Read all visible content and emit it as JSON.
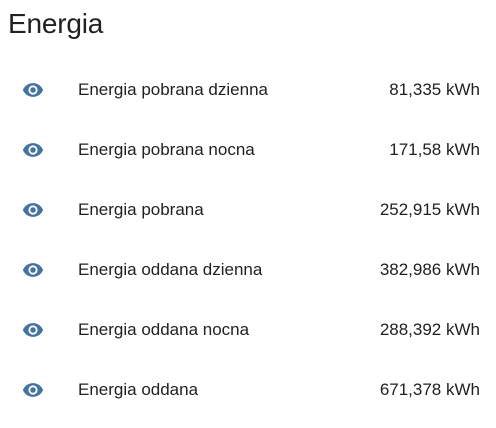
{
  "card": {
    "title": "Energia"
  },
  "theme": {
    "icon_color": "#44739e",
    "text_color": "#212121"
  },
  "entities": [
    {
      "icon": "eye-icon",
      "name": "Energia pobrana dzienna",
      "state": "81,335 kWh"
    },
    {
      "icon": "eye-icon",
      "name": "Energia pobrana nocna",
      "state": "171,58 kWh"
    },
    {
      "icon": "eye-icon",
      "name": "Energia pobrana",
      "state": "252,915 kWh"
    },
    {
      "icon": "eye-icon",
      "name": "Energia oddana dzienna",
      "state": "382,986 kWh"
    },
    {
      "icon": "eye-icon",
      "name": "Energia oddana nocna",
      "state": "288,392 kWh"
    },
    {
      "icon": "eye-icon",
      "name": "Energia oddana",
      "state": "671,378 kWh"
    }
  ]
}
